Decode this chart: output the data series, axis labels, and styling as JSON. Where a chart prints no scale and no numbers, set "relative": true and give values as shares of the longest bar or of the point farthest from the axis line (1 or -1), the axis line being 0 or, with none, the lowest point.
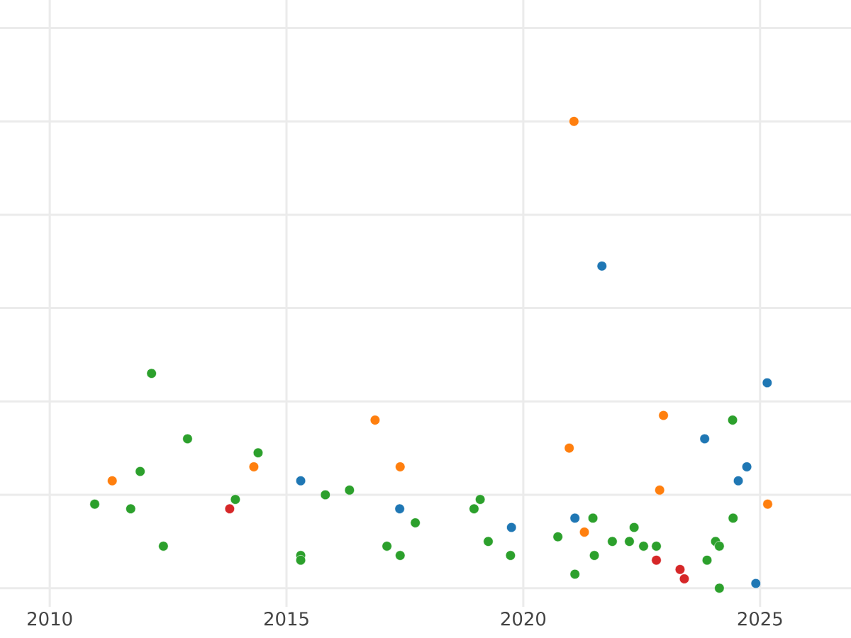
{
  "chart_data": {
    "type": "scatter",
    "relative": true,
    "grid": true,
    "xlim": [
      2008.95,
      2026.92
    ],
    "xticks": [
      2010,
      2015,
      2020,
      2025
    ],
    "series": [
      {
        "color": "#1f77b4",
        "x": [
          2015.3,
          2017.39,
          2019.75,
          2021.09,
          2021.66,
          2023.83,
          2024.54,
          2024.72,
          2024.91,
          2025.15
        ],
        "values": [
          0.23,
          0.17,
          0.13,
          0.15,
          0.69,
          0.32,
          0.23,
          0.26,
          0.01,
          0.44
        ]
      },
      {
        "color": "#ff7f0e",
        "x": [
          2011.32,
          2014.31,
          2016.87,
          2017.4,
          2020.97,
          2021.07,
          2021.29,
          2022.88,
          2022.96,
          2025.16
        ],
        "values": [
          0.23,
          0.26,
          0.36,
          0.26,
          0.3,
          1.0,
          0.12,
          0.21,
          0.37,
          0.18
        ]
      },
      {
        "color": "#2ca02c",
        "x": [
          2010.95,
          2011.71,
          2011.91,
          2012.15,
          2012.4,
          2012.91,
          2013.92,
          2014.4,
          2015.3,
          2015.3,
          2015.82,
          2016.33,
          2017.12,
          2017.4,
          2017.72,
          2018.96,
          2019.09,
          2019.26,
          2019.73,
          2020.73,
          2021.09,
          2021.47,
          2021.5,
          2021.88,
          2022.24,
          2022.34,
          2022.54,
          2022.81,
          2023.88,
          2024.06,
          2024.14,
          2024.14,
          2024.43,
          2024.42
        ],
        "values": [
          0.18,
          0.17,
          0.25,
          0.46,
          0.09,
          0.32,
          0.19,
          0.29,
          0.07,
          0.06,
          0.2,
          0.21,
          0.09,
          0.07,
          0.14,
          0.17,
          0.19,
          0.1,
          0.07,
          0.11,
          0.03,
          0.15,
          0.07,
          0.1,
          0.1,
          0.13,
          0.09,
          0.09,
          0.06,
          0.1,
          0.09,
          0.0,
          0.15,
          0.36
        ]
      },
      {
        "color": "#d62728",
        "x": [
          2013.8,
          2022.81,
          2023.31,
          2023.4
        ],
        "values": [
          0.17,
          0.06,
          0.04,
          0.02
        ]
      }
    ]
  }
}
